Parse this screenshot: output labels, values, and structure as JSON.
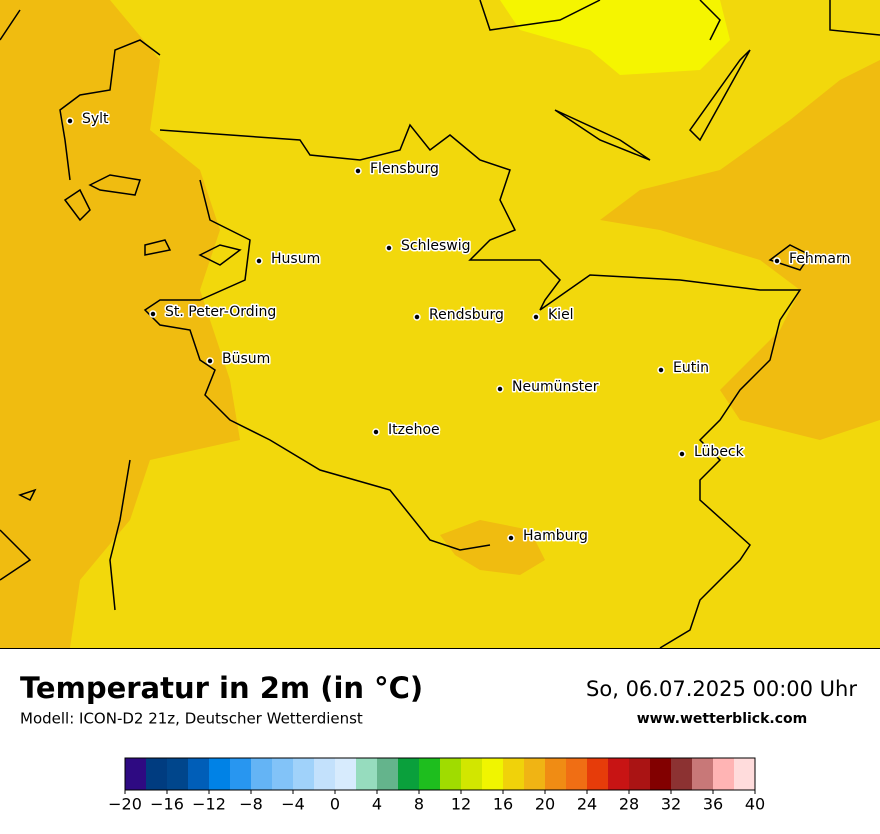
{
  "header": {
    "title": "Temperatur in 2m (in °C)",
    "subtitle": "Modell: ICON-D2 21z, Deutscher Wetterdienst",
    "date": "So, 06.07.2025 00:00 Uhr",
    "website": "www.wetterblick.com"
  },
  "cities": [
    "Sylt",
    "Flensburg",
    "Schleswig",
    "Husum",
    "St. Peter-Ording",
    "Rendsburg",
    "Kiel",
    "Büsum",
    "Neumünster",
    "Eutin",
    "Itzehoe",
    "Lübeck",
    "Fehmarn",
    "Hamburg"
  ],
  "colorbar": {
    "bins": [
      -20,
      -18,
      -16,
      -14,
      -12,
      -10,
      -8,
      -6,
      -4,
      -2,
      0,
      2,
      4,
      6,
      8,
      10,
      12,
      14,
      16,
      18,
      20,
      22,
      24,
      26,
      28,
      30,
      32,
      34,
      36,
      38,
      40
    ],
    "colors": [
      "#2e0a82",
      "#003c80",
      "#00468c",
      "#005eb8",
      "#0082e6",
      "#2896f0",
      "#64b4f5",
      "#82c3f8",
      "#a0d2fa",
      "#c3e1fc",
      "#d7ebfd",
      "#96dcbe",
      "#64b48c",
      "#0aa03c",
      "#1ebe1e",
      "#a0dc00",
      "#d2e600",
      "#f0f500",
      "#f0d20a",
      "#f0b414",
      "#f08c14",
      "#f06e14",
      "#e63c0a",
      "#c81414",
      "#aa1414",
      "#820000",
      "#8c3232",
      "#c87878",
      "#ffb4b4",
      "#ffdcdc"
    ],
    "ticks": [
      {
        "value": -20,
        "label": "−20"
      },
      {
        "value": -16,
        "label": "−16"
      },
      {
        "value": -12,
        "label": "−12"
      },
      {
        "value": -8,
        "label": "−8"
      },
      {
        "value": -4,
        "label": "−4"
      },
      0,
      4,
      8,
      12,
      16,
      20,
      24,
      28,
      32,
      36,
      40
    ]
  }
}
